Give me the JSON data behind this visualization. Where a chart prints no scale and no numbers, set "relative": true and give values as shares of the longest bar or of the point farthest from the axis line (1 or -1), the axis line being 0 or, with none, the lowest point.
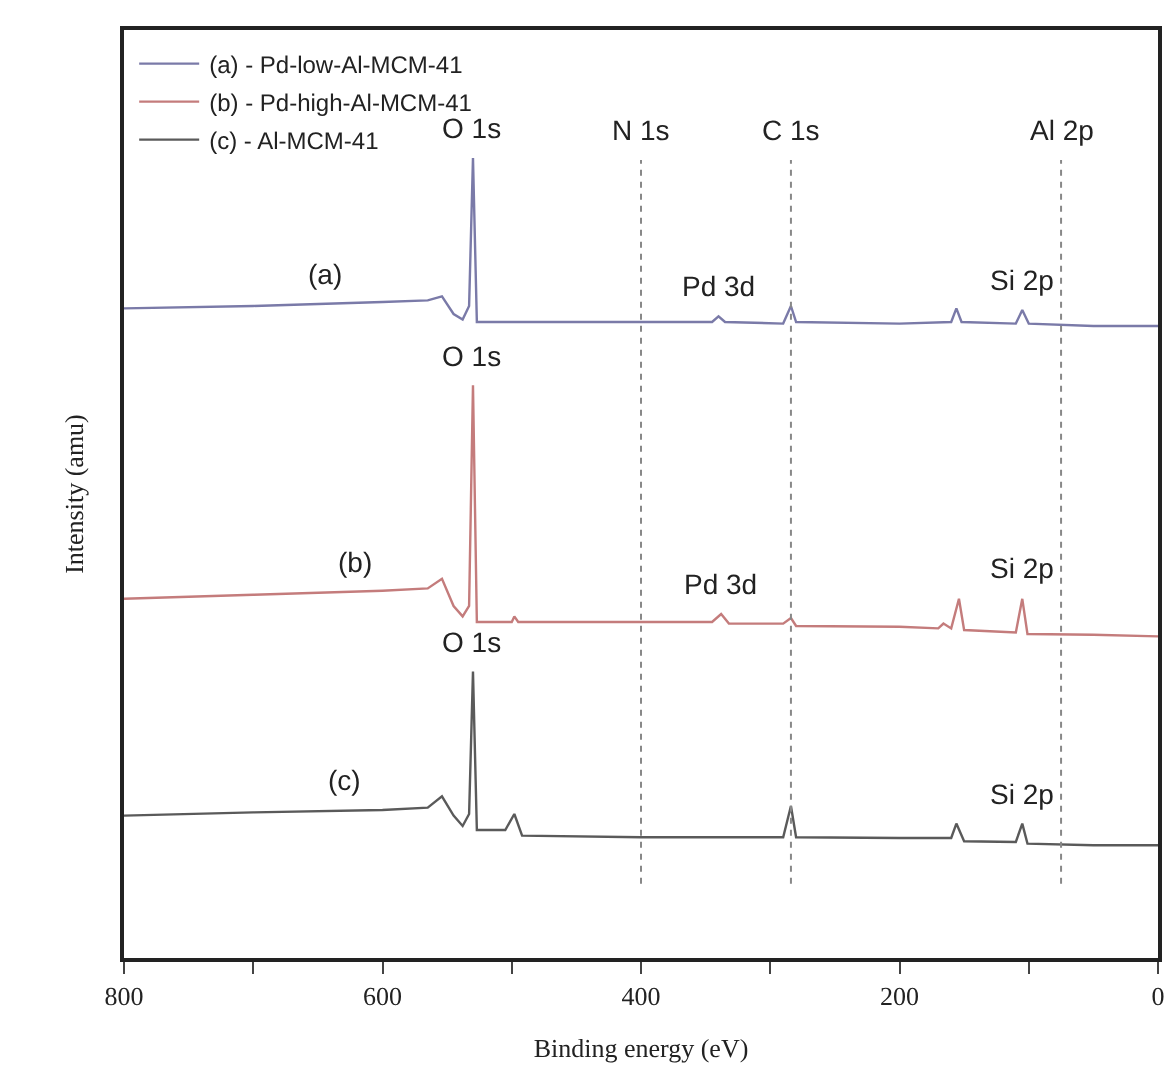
{
  "chart_data": {
    "type": "line",
    "relative": true,
    "xlabel": "Binding energy (eV)",
    "ylabel": "Intensity (amu)",
    "xlim": [
      800,
      0
    ],
    "xticks": [
      800,
      {
        "value": 700,
        "label": null
      },
      600,
      {
        "value": 500,
        "label": null
      },
      400,
      {
        "value": 300,
        "label": null
      },
      200,
      {
        "value": 100,
        "label": null
      },
      0
    ],
    "legend": "top left",
    "marker": "none",
    "line_style": "solid",
    "series": [
      {
        "name": "(a) - Pd-low-Al-MCM-41",
        "color": "#7a7aa8",
        "x": [
          800,
          700,
          600,
          565,
          554,
          545,
          538,
          533,
          530,
          527,
          500,
          400,
          345,
          340,
          335,
          290,
          284,
          280,
          200,
          160,
          156,
          152,
          110,
          105,
          100,
          50,
          0
        ],
        "values": [
          0.812,
          0.815,
          0.82,
          0.822,
          0.827,
          0.805,
          0.798,
          0.815,
          1.0,
          0.795,
          0.795,
          0.795,
          0.795,
          0.802,
          0.795,
          0.793,
          0.815,
          0.795,
          0.793,
          0.795,
          0.812,
          0.795,
          0.793,
          0.81,
          0.793,
          0.79,
          0.79
        ]
      },
      {
        "name": "(b) - Pd-high-Al-MCM-41",
        "color": "#c47c7c",
        "x": [
          800,
          700,
          600,
          565,
          554,
          545,
          538,
          533,
          530,
          527,
          500,
          498,
          495,
          400,
          345,
          338,
          332,
          290,
          284,
          280,
          200,
          170,
          166,
          160,
          154,
          150,
          110,
          105,
          101,
          50,
          0
        ],
        "values": [
          0.449,
          0.454,
          0.459,
          0.462,
          0.474,
          0.44,
          0.427,
          0.44,
          0.716,
          0.42,
          0.42,
          0.427,
          0.42,
          0.42,
          0.42,
          0.43,
          0.418,
          0.418,
          0.425,
          0.415,
          0.414,
          0.412,
          0.418,
          0.412,
          0.449,
          0.41,
          0.407,
          0.449,
          0.405,
          0.404,
          0.402
        ]
      },
      {
        "name": "(c) - Al-MCM-41",
        "color": "#5a5a5a",
        "x": [
          800,
          700,
          600,
          565,
          554,
          545,
          538,
          533,
          530,
          527,
          505,
          498,
          492,
          400,
          290,
          284,
          280,
          200,
          160,
          156,
          150,
          110,
          105,
          101,
          50,
          0
        ],
        "values": [
          0.178,
          0.182,
          0.185,
          0.188,
          0.202,
          0.178,
          0.165,
          0.18,
          0.358,
          0.16,
          0.16,
          0.18,
          0.153,
          0.151,
          0.151,
          0.19,
          0.151,
          0.15,
          0.15,
          0.168,
          0.146,
          0.145,
          0.168,
          0.143,
          0.141,
          0.141
        ]
      }
    ],
    "ref_lines": [
      {
        "axis": "x",
        "value": 400,
        "label": "N 1s",
        "color": "#888888",
        "line_style": "dotted"
      },
      {
        "axis": "x",
        "value": 284,
        "label": "C 1s",
        "color": "#888888",
        "line_style": "dotted"
      },
      {
        "axis": "x",
        "value": 75,
        "label": "Al 2p",
        "color": "#888888",
        "line_style": "dotted"
      }
    ],
    "annotations": [
      {
        "text": "O 1s",
        "x": 530,
        "y": 1.0
      },
      {
        "text": "O 1s",
        "x": 530,
        "y": 0.716
      },
      {
        "text": "O 1s",
        "x": 530,
        "y": 0.358
      },
      {
        "text": "(a)",
        "x": 645,
        "y": 0.818
      },
      {
        "text": "(b)",
        "x": 622,
        "y": 0.457
      },
      {
        "text": "(c)",
        "x": 630,
        "y": 0.184
      },
      {
        "text": "Pd 3d",
        "x": 340,
        "y": 0.802
      },
      {
        "text": "Si 2p",
        "x": 105,
        "y": 0.81
      },
      {
        "text": "Pd 3d",
        "x": 338,
        "y": 0.43
      },
      {
        "text": "Si 2p",
        "x": 105,
        "y": 0.449
      },
      {
        "text": "Si 2p",
        "x": 105,
        "y": 0.168
      }
    ]
  }
}
